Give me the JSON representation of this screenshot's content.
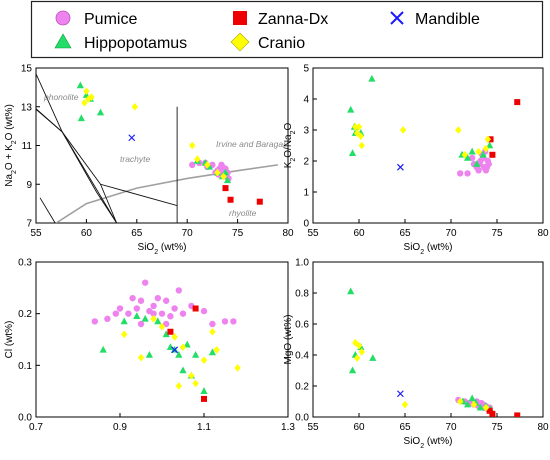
{
  "legend": {
    "items": [
      {
        "label": "Pumice",
        "shape": "circle",
        "color": "#ee82ee"
      },
      {
        "label": "Zanna-Dx",
        "shape": "square",
        "color": "#ee0000"
      },
      {
        "label": "Mandible",
        "shape": "cross",
        "color": "#1a1aff"
      },
      {
        "label": "Hippopotamus",
        "shape": "triangle",
        "color": "#22dd66"
      },
      {
        "label": "Cranio",
        "shape": "diamond",
        "color": "#ffff00"
      }
    ]
  },
  "chart_data": [
    {
      "type": "scatter",
      "id": "tas",
      "xlabel": "SiO2 (wt%)",
      "ylabel": "Na2O + K2O (wt%)",
      "xlim": [
        55,
        80
      ],
      "ylim": [
        7,
        15
      ],
      "xticks": [
        55,
        60,
        65,
        70,
        75,
        80
      ],
      "yticks": [
        7,
        9,
        11,
        13,
        15
      ],
      "field_labels": [
        "phonolite",
        "trachyte",
        "rhyolite",
        "Irvine and Baragar"
      ],
      "field_lines": [
        [
          [
            55,
            12.9
          ],
          [
            57.6,
            11.7
          ],
          [
            63,
            7
          ]
        ],
        [
          [
            57.6,
            11.7
          ],
          [
            61,
            8.6
          ],
          [
            63,
            7
          ]
        ],
        [
          [
            55.4,
            8.3
          ],
          [
            56.9,
            7
          ]
        ],
        [
          [
            55,
            14.7
          ],
          [
            57.6,
            11.7
          ]
        ],
        [
          [
            52.5,
            14
          ],
          [
            57.6,
            11.7
          ]
        ],
        [
          [
            57.6,
            11.7
          ],
          [
            61.4,
            9
          ],
          [
            69,
            7.9
          ],
          [
            69,
            7
          ]
        ],
        [
          [
            61.4,
            9
          ],
          [
            63,
            7
          ]
        ],
        [
          [
            69,
            7.9
          ],
          [
            69,
            13
          ]
        ]
      ],
      "divider": [
        [
          57,
          7
        ],
        [
          60,
          8
        ],
        [
          65,
          8.8
        ],
        [
          70,
          9.3
        ],
        [
          75,
          9.7
        ],
        [
          79,
          10
        ]
      ],
      "series": [
        {
          "name": "Pumice",
          "x": [
            70.5,
            71.2,
            72,
            72.5,
            73,
            73.2,
            73.4,
            73.5,
            73.6,
            73.8,
            73.7,
            74,
            73.9,
            74.1,
            73.3,
            72.8,
            71.8,
            73.1
          ],
          "y": [
            10,
            10.1,
            9.9,
            10,
            9.7,
            9.8,
            10,
            9.9,
            9.6,
            9.8,
            9.7,
            9.6,
            9.4,
            9.3,
            9.7,
            9.6,
            10.1,
            9.5
          ]
        },
        {
          "name": "Hippopotamus",
          "x": [
            59.4,
            59.5,
            60,
            60.4,
            61.4,
            71,
            71.8,
            72.2,
            73,
            73.5,
            73.8,
            74
          ],
          "y": [
            14.1,
            12.4,
            13.6,
            13.4,
            12.7,
            10.2,
            10.1,
            9.9,
            9.6,
            9.4,
            9.6,
            9.2
          ]
        },
        {
          "name": "Zanna-Dx",
          "x": [
            73.8,
            74.3,
            77.2
          ],
          "y": [
            8.8,
            8.2,
            8.1
          ]
        },
        {
          "name": "Mandible",
          "x": [
            64.5
          ],
          "y": [
            11.4
          ]
        },
        {
          "name": "Cranio",
          "x": [
            60,
            60.2,
            60.5,
            59.8,
            64.8,
            70.5,
            71,
            72,
            73,
            73.6
          ],
          "y": [
            13.8,
            13.4,
            13.5,
            13.2,
            13,
            11,
            10.3,
            10,
            9.6,
            9.4
          ]
        }
      ]
    },
    {
      "type": "scatter",
      "id": "k2o_na2o",
      "xlabel": "SiO2 (wt%)",
      "ylabel": "K2O/Na2O",
      "xlim": [
        55,
        80
      ],
      "ylim": [
        0,
        5
      ],
      "xticks": [
        55,
        60,
        65,
        70,
        75,
        80
      ],
      "yticks": [
        0,
        1,
        2,
        3,
        4,
        5
      ],
      "series": [
        {
          "name": "Pumice",
          "x": [
            71,
            71.8,
            72.5,
            73,
            73.2,
            73.5,
            73.6,
            73.8,
            74,
            73.4,
            72.8,
            73.1,
            73.7,
            72.3,
            73.9,
            74.1
          ],
          "y": [
            1.6,
            1.6,
            1.9,
            1.7,
            2,
            2.1,
            1.8,
            1.7,
            2,
            2.2,
            1.8,
            1.9,
            2.3,
            2.1,
            1.8,
            1.9
          ]
        },
        {
          "name": "Hippopotamus",
          "x": [
            59.1,
            59.3,
            59.5,
            59.6,
            60.2,
            61.4,
            71.2,
            71.8,
            72.3,
            72.8,
            73.5,
            74.2
          ],
          "y": [
            3.65,
            2.25,
            3.1,
            2.9,
            2.9,
            4.65,
            2.2,
            2.1,
            2.3,
            1.9,
            2.2,
            2.5
          ]
        },
        {
          "name": "Zanna-Dx",
          "x": [
            74.3,
            74.5,
            77.2
          ],
          "y": [
            2.7,
            2.2,
            3.9
          ]
        },
        {
          "name": "Mandible",
          "x": [
            64.5
          ],
          "y": [
            1.8
          ]
        },
        {
          "name": "Cranio",
          "x": [
            59.6,
            59.8,
            60,
            60.2,
            60.3,
            64.8,
            70.8,
            71.5,
            73,
            73.8,
            74
          ],
          "y": [
            3.1,
            2.9,
            3.1,
            2.8,
            2.5,
            3,
            3,
            2.2,
            2.3,
            2.4,
            2.7
          ]
        }
      ]
    },
    {
      "type": "scatter",
      "id": "cl",
      "xlabel": "",
      "ylabel": "Cl (wt%)",
      "xlim": [
        0.7,
        1.3
      ],
      "ylim": [
        0,
        0.3
      ],
      "xticks": [
        0.7,
        0.9,
        1.1,
        1.3
      ],
      "yticks": [
        0,
        0.1,
        0.2,
        0.3
      ],
      "series": [
        {
          "name": "Pumice",
          "x": [
            0.84,
            0.87,
            0.89,
            0.9,
            0.92,
            0.93,
            0.94,
            0.95,
            0.96,
            0.97,
            0.98,
            0.99,
            1,
            1.01,
            1.02,
            1.03,
            1.04,
            1.05,
            1.07,
            1.1,
            1.12,
            1.15,
            1.17,
            0.95,
            0.98,
            1.01
          ],
          "y": [
            0.185,
            0.19,
            0.2,
            0.21,
            0.2,
            0.23,
            0.21,
            0.225,
            0.26,
            0.205,
            0.215,
            0.23,
            0.2,
            0.225,
            0.195,
            0.21,
            0.245,
            0.2,
            0.215,
            0.205,
            0.18,
            0.185,
            0.185,
            0.18,
            0.2,
            0.18
          ]
        },
        {
          "name": "Hippopotamus",
          "x": [
            0.86,
            0.91,
            0.94,
            0.96,
            0.97,
            0.99,
            1.01,
            1.02,
            1.03,
            1.04,
            1.05,
            1.06,
            1.07,
            1.08,
            1.1,
            1.12
          ],
          "y": [
            0.13,
            0.185,
            0.195,
            0.19,
            0.12,
            0.185,
            0.16,
            0.135,
            0.13,
            0.12,
            0.09,
            0.14,
            0.08,
            0.12,
            0.05,
            0.125
          ]
        },
        {
          "name": "Zanna-Dx",
          "x": [
            1.02,
            1.08,
            1.1
          ],
          "y": [
            0.165,
            0.21,
            0.035
          ]
        },
        {
          "name": "Mandible",
          "x": [
            1.03
          ],
          "y": [
            0.13
          ]
        },
        {
          "name": "Cranio",
          "x": [
            0.91,
            0.95,
            1,
            1.03,
            1.04,
            1.05,
            1.07,
            1.08,
            1.1,
            1.12,
            1.13,
            1.18,
            0.98
          ],
          "y": [
            0.16,
            0.115,
            0.175,
            0.155,
            0.06,
            0.135,
            0.08,
            0.065,
            0.11,
            0.165,
            0.13,
            0.095,
            0.19
          ]
        }
      ]
    },
    {
      "type": "scatter",
      "id": "mgo",
      "xlabel": "SiO2 (wt%)",
      "ylabel": "MgO (wt%)",
      "xlim": [
        55,
        80
      ],
      "ylim": [
        0,
        1
      ],
      "xticks": [
        55,
        60,
        65,
        70,
        75,
        80
      ],
      "yticks": [
        0,
        0.2,
        0.4,
        0.6,
        0.8,
        1.0
      ],
      "series": [
        {
          "name": "Pumice",
          "x": [
            70.8,
            71.5,
            72,
            72.5,
            73,
            73.3,
            73.6,
            73.8,
            74,
            74.2,
            73.5,
            72.8
          ],
          "y": [
            0.11,
            0.1,
            0.09,
            0.08,
            0.07,
            0.09,
            0.06,
            0.07,
            0.05,
            0.06,
            0.08,
            0.1
          ]
        },
        {
          "name": "Hippopotamus",
          "x": [
            59.1,
            59.3,
            59.6,
            60.2,
            61.5,
            71.3,
            71.8,
            72.3,
            72.7,
            73.2,
            73.8,
            74.3
          ],
          "y": [
            0.81,
            0.3,
            0.4,
            0.45,
            0.38,
            0.1,
            0.08,
            0.12,
            0.09,
            0.06,
            0.07,
            0.05
          ]
        },
        {
          "name": "Zanna-Dx",
          "x": [
            74.2,
            74.5,
            77.2
          ],
          "y": [
            0.04,
            0.02,
            0.01
          ]
        },
        {
          "name": "Mandible",
          "x": [
            64.5
          ],
          "y": [
            0.15
          ]
        },
        {
          "name": "Cranio",
          "x": [
            59.6,
            59.8,
            60,
            60.3,
            65,
            71,
            72.5,
            73.8
          ],
          "y": [
            0.48,
            0.38,
            0.46,
            0.42,
            0.08,
            0.1,
            0.08,
            0.06
          ]
        }
      ]
    }
  ]
}
